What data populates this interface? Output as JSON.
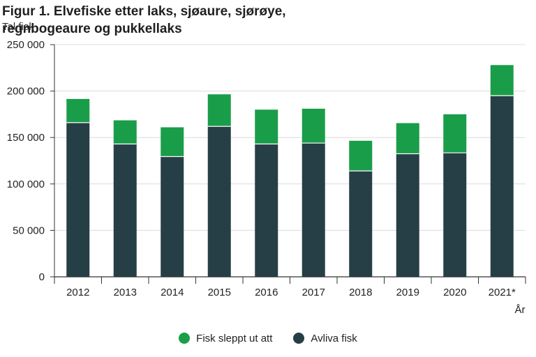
{
  "chart_data": {
    "type": "bar",
    "stacked": true,
    "title": "Figur 1. Elvefiske etter laks, sjøaure, sjørøye, regnbogeaure og pukkellaks",
    "ylabel": "Tal fisk",
    "xlabel": "År",
    "ylim": [
      0,
      250000
    ],
    "yticks": [
      0,
      50000,
      100000,
      150000,
      200000,
      250000
    ],
    "ytick_labels": [
      "0",
      "50 000",
      "100 000",
      "150 000",
      "200 000",
      "250 000"
    ],
    "categories": [
      "2012",
      "2013",
      "2014",
      "2015",
      "2016",
      "2017",
      "2018",
      "2019",
      "2020",
      "2021*"
    ],
    "series": [
      {
        "name": "Avliva fisk",
        "color": "#263f47",
        "values": [
          166000,
          143000,
          129500,
          162000,
          143000,
          144000,
          114000,
          132500,
          133500,
          195000
        ]
      },
      {
        "name": "Fisk sleppt ut att",
        "color": "#1a9d49",
        "values": [
          25500,
          25500,
          31500,
          34500,
          37000,
          37000,
          32500,
          33000,
          41500,
          33000
        ]
      }
    ],
    "legend": [
      {
        "name": "Fisk sleppt ut att",
        "color": "#1a9d49"
      },
      {
        "name": "Avliva fisk",
        "color": "#263f47"
      }
    ]
  }
}
